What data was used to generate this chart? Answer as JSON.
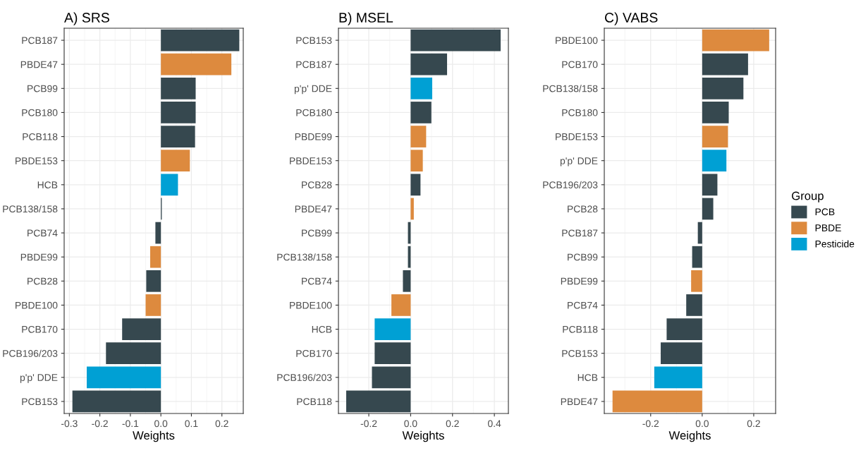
{
  "chart_data": [
    {
      "type": "bar",
      "orientation": "horizontal",
      "title": "A) SRS",
      "xlabel": "Weights",
      "grid": true,
      "legend": false,
      "categories": [
        "PCB187",
        "PBDE47",
        "PCB99",
        "PCB180",
        "PCB118",
        "PBDE153",
        "HCB",
        "PCB138/158",
        "PCB74",
        "PBDE99",
        "PCB28",
        "PBDE100",
        "PCB170",
        "PCB196/203",
        "p'p' DDE",
        "PCB153"
      ],
      "series": [
        {
          "color": "#36484f",
          "values": [
            0.257,
            null,
            0.114,
            0.114,
            0.112,
            null,
            null,
            0.003,
            -0.018,
            null,
            -0.048,
            null,
            -0.127,
            -0.18,
            null,
            -0.29
          ]
        },
        {
          "color": "#dd8a3e",
          "values": [
            null,
            0.231,
            null,
            null,
            null,
            0.095,
            null,
            null,
            null,
            -0.035,
            null,
            -0.05,
            null,
            null,
            null,
            null
          ]
        },
        {
          "color": "#00a0d4",
          "values": [
            null,
            null,
            null,
            null,
            null,
            null,
            0.056,
            null,
            null,
            null,
            null,
            null,
            null,
            null,
            -0.243,
            null
          ]
        }
      ],
      "xlim": [
        -0.317,
        0.27
      ],
      "xticks": [
        {
          "value": -0.3,
          "label": "-0.3"
        },
        {
          "value": -0.2,
          "label": "-0.2"
        },
        {
          "value": -0.1,
          "label": "-0.1"
        },
        {
          "value": 0,
          "label": "0.0"
        },
        {
          "value": 0.1,
          "label": "0.1"
        },
        {
          "value": 0.2,
          "label": "0.2"
        }
      ]
    },
    {
      "type": "bar",
      "orientation": "horizontal",
      "title": "B) MSEL",
      "xlabel": "Weights",
      "grid": true,
      "legend": false,
      "categories": [
        "PCB153",
        "PCB187",
        "p'p' DDE",
        "PCB180",
        "PBDE99",
        "PBDE153",
        "PCB28",
        "PBDE47",
        "PCB99",
        "PCB138/158",
        "PCB74",
        "PBDE100",
        "HCB",
        "PCB170",
        "PCB196/203",
        "PCB118"
      ],
      "series": [
        {
          "color": "#36484f",
          "values": [
            0.43,
            0.174,
            null,
            0.099,
            null,
            null,
            0.047,
            null,
            -0.013,
            -0.013,
            -0.037,
            null,
            null,
            -0.172,
            -0.185,
            -0.308
          ]
        },
        {
          "color": "#dd8a3e",
          "values": [
            null,
            null,
            null,
            null,
            0.074,
            0.058,
            null,
            0.015,
            null,
            null,
            null,
            -0.092,
            null,
            null,
            null,
            null
          ]
        },
        {
          "color": "#00a0d4",
          "values": [
            null,
            null,
            0.103,
            null,
            null,
            null,
            null,
            null,
            null,
            null,
            null,
            null,
            -0.172,
            null,
            null,
            null
          ]
        }
      ],
      "xlim": [
        -0.345,
        0.467
      ],
      "xticks": [
        {
          "value": -0.2,
          "label": "-0.2"
        },
        {
          "value": 0,
          "label": "0.0"
        },
        {
          "value": 0.2,
          "label": "0.2"
        },
        {
          "value": 0.4,
          "label": "0.4"
        }
      ]
    },
    {
      "type": "bar",
      "orientation": "horizontal",
      "title": "C) VABS",
      "xlabel": "Weights",
      "grid": true,
      "legend": "right",
      "legend_title": "Group",
      "categories": [
        "PBDE100",
        "PCB170",
        "PCB138/158",
        "PCB180",
        "PBDE153",
        "p'p' DDE",
        "PCB196/203",
        "PCB28",
        "PCB187",
        "PCB99",
        "PBDE99",
        "PCB74",
        "PCB118",
        "PCB153",
        "HCB",
        "PBDE47"
      ],
      "series": [
        {
          "name": "PCB",
          "color": "#36484f",
          "values": [
            null,
            0.178,
            0.16,
            0.103,
            null,
            null,
            0.059,
            0.043,
            -0.017,
            -0.039,
            null,
            -0.062,
            -0.138,
            -0.161,
            null,
            null
          ]
        },
        {
          "name": "PBDE",
          "color": "#dd8a3e",
          "values": [
            0.26,
            null,
            null,
            null,
            0.1,
            null,
            null,
            null,
            null,
            null,
            -0.043,
            null,
            null,
            null,
            null,
            -0.348
          ]
        },
        {
          "name": "Pesticide",
          "color": "#00a0d4",
          "values": [
            null,
            null,
            null,
            null,
            null,
            0.094,
            null,
            null,
            null,
            null,
            null,
            null,
            null,
            null,
            -0.186,
            null
          ]
        }
      ],
      "xlim": [
        -0.38,
        0.285
      ],
      "xticks": [
        {
          "value": -0.2,
          "label": "-0.2"
        },
        {
          "value": 0,
          "label": "0.0"
        },
        {
          "value": 0.2,
          "label": "0.2"
        }
      ]
    }
  ]
}
